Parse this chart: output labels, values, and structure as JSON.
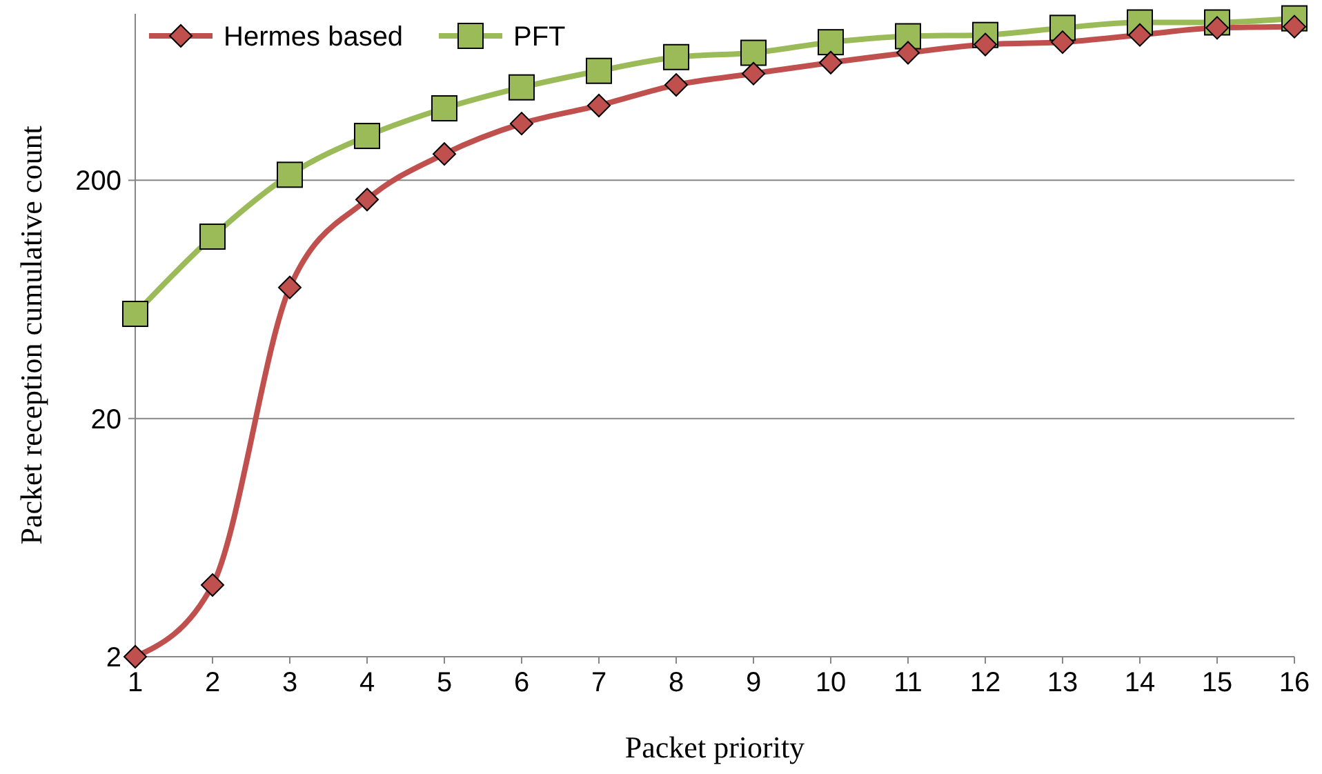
{
  "chart_data": {
    "type": "line",
    "xlabel": "Packet priority",
    "ylabel": "Packet reception cumulative count",
    "x": [
      1,
      2,
      3,
      4,
      5,
      6,
      7,
      8,
      9,
      10,
      11,
      12,
      13,
      14,
      15,
      16
    ],
    "xlim": [
      1,
      16
    ],
    "xticks": [
      1,
      2,
      3,
      4,
      5,
      6,
      7,
      8,
      9,
      10,
      11,
      12,
      13,
      14,
      15,
      16
    ],
    "ylim": [
      2,
      1000
    ],
    "yticks": [
      2,
      20,
      200
    ],
    "log": true,
    "grid": "y",
    "legend": "top left",
    "series": [
      {
        "name": "Hermes based",
        "color": "#c0504d",
        "marker": "diamond",
        "values": [
          2,
          4,
          71,
          166,
          258,
          346,
          412,
          503,
          561,
          624,
          686,
          743,
          760,
          815,
          873,
          883
        ]
      },
      {
        "name": "PFT",
        "color": "#9bbb59",
        "marker": "square",
        "values": [
          55,
          116,
          211,
          307,
          401,
          491,
          576,
          658,
          686,
          760,
          805,
          815,
          873,
          920,
          920,
          957
        ]
      }
    ]
  }
}
